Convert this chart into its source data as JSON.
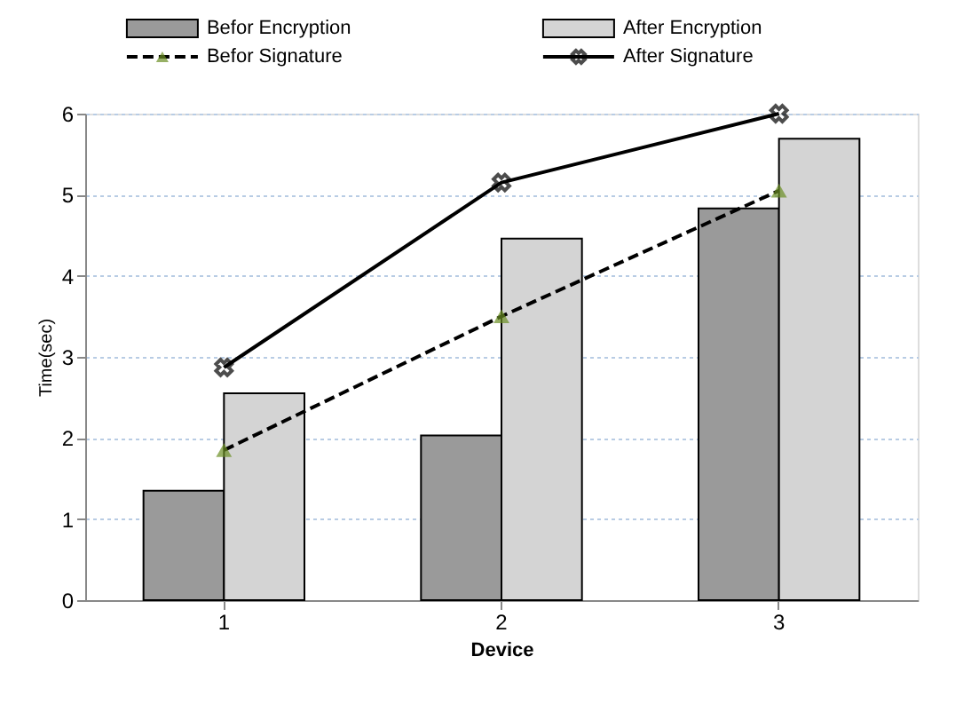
{
  "chart_data": {
    "type": "bar",
    "xlabel": "Device",
    "ylabel": "Time(sec)",
    "categories": [
      "1",
      "2",
      "3"
    ],
    "series": [
      {
        "name": "Befor Encryption",
        "color": "#9a9a9a",
        "values": [
          1.35,
          2.03,
          4.83
        ]
      },
      {
        "name": "After Encryption",
        "color": "#d4d4d4",
        "values": [
          2.55,
          4.46,
          5.69
        ]
      },
      {
        "name": "Befor Signature",
        "type": "line",
        "color": "#000000",
        "line_style": "dashed",
        "marker": "triangle",
        "values": [
          1.85,
          3.5,
          5.05
        ]
      },
      {
        "name": "After Signature",
        "type": "line",
        "color": "#000000",
        "line_style": "solid",
        "marker": "cross",
        "values": [
          2.87,
          5.15,
          6.0
        ]
      }
    ],
    "ylim": [
      0,
      6
    ],
    "yticks": [
      0,
      1,
      2,
      3,
      4,
      5,
      6
    ],
    "grid": "y",
    "legend": "top"
  }
}
